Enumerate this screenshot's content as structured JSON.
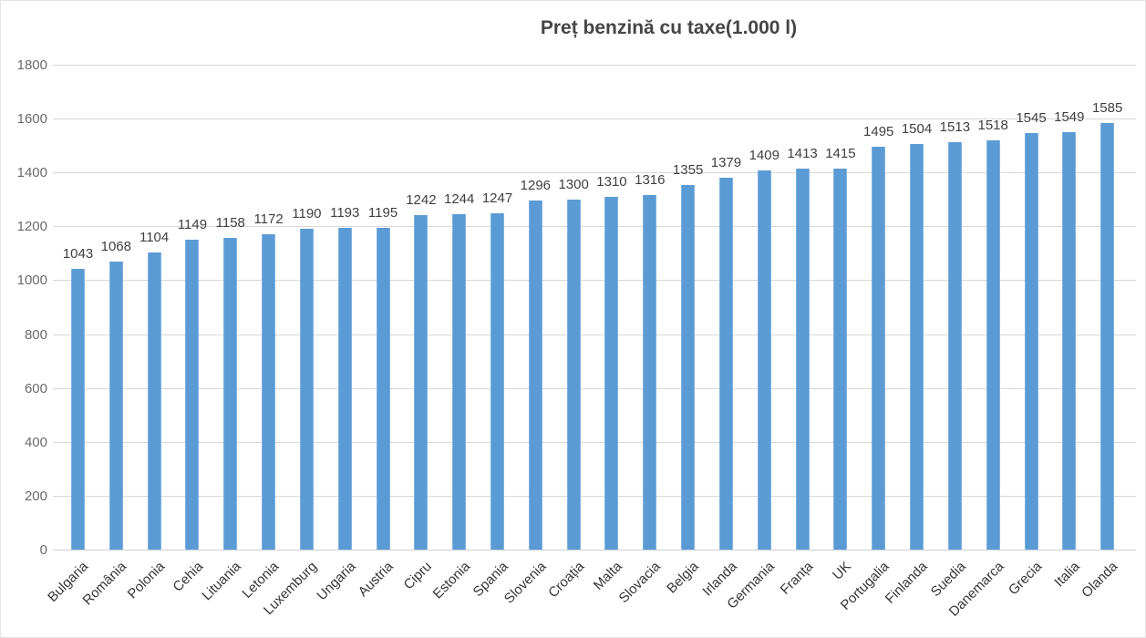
{
  "title": "Preț benzină cu taxe(1.000 l)",
  "colors": {
    "bar": "#5b9bd5",
    "bar_edge": "#7fb2e0",
    "gridline": "#d9d9d9",
    "title_text": "#454545",
    "value_label_text": "#3f3f3f",
    "axis_tick_text": "#6a6a6a",
    "category_text": "#363636",
    "background": "#ffffff"
  },
  "chart_data": {
    "type": "bar",
    "title": "Preț benzină cu taxe(1.000 l)",
    "xlabel": "",
    "ylabel": "",
    "ylim": [
      0,
      1800
    ],
    "ytick_step": 200,
    "yticks": [
      0,
      200,
      400,
      600,
      800,
      1000,
      1200,
      1400,
      1600,
      1800
    ],
    "grid": true,
    "legend": false,
    "data_labels": true,
    "categories": [
      "Bulgaria",
      "România",
      "Polonia",
      "Cehia",
      "Lituania",
      "Letonia",
      "Luxemburg",
      "Ungaria",
      "Austria",
      "Cipru",
      "Estonia",
      "Spania",
      "Slovenia",
      "Croația",
      "Malta",
      "Slovacia",
      "Belgia",
      "Irlanda",
      "Germania",
      "Franța",
      "UK",
      "Portugalia",
      "Finlanda",
      "Suedia",
      "Danemarca",
      "Grecia",
      "Italia",
      "Olanda"
    ],
    "values": [
      1043,
      1068,
      1104,
      1149,
      1158,
      1172,
      1190,
      1193,
      1195,
      1242,
      1244,
      1247,
      1296,
      1300,
      1310,
      1316,
      1355,
      1379,
      1409,
      1413,
      1415,
      1495,
      1504,
      1513,
      1518,
      1545,
      1549,
      1585
    ]
  }
}
